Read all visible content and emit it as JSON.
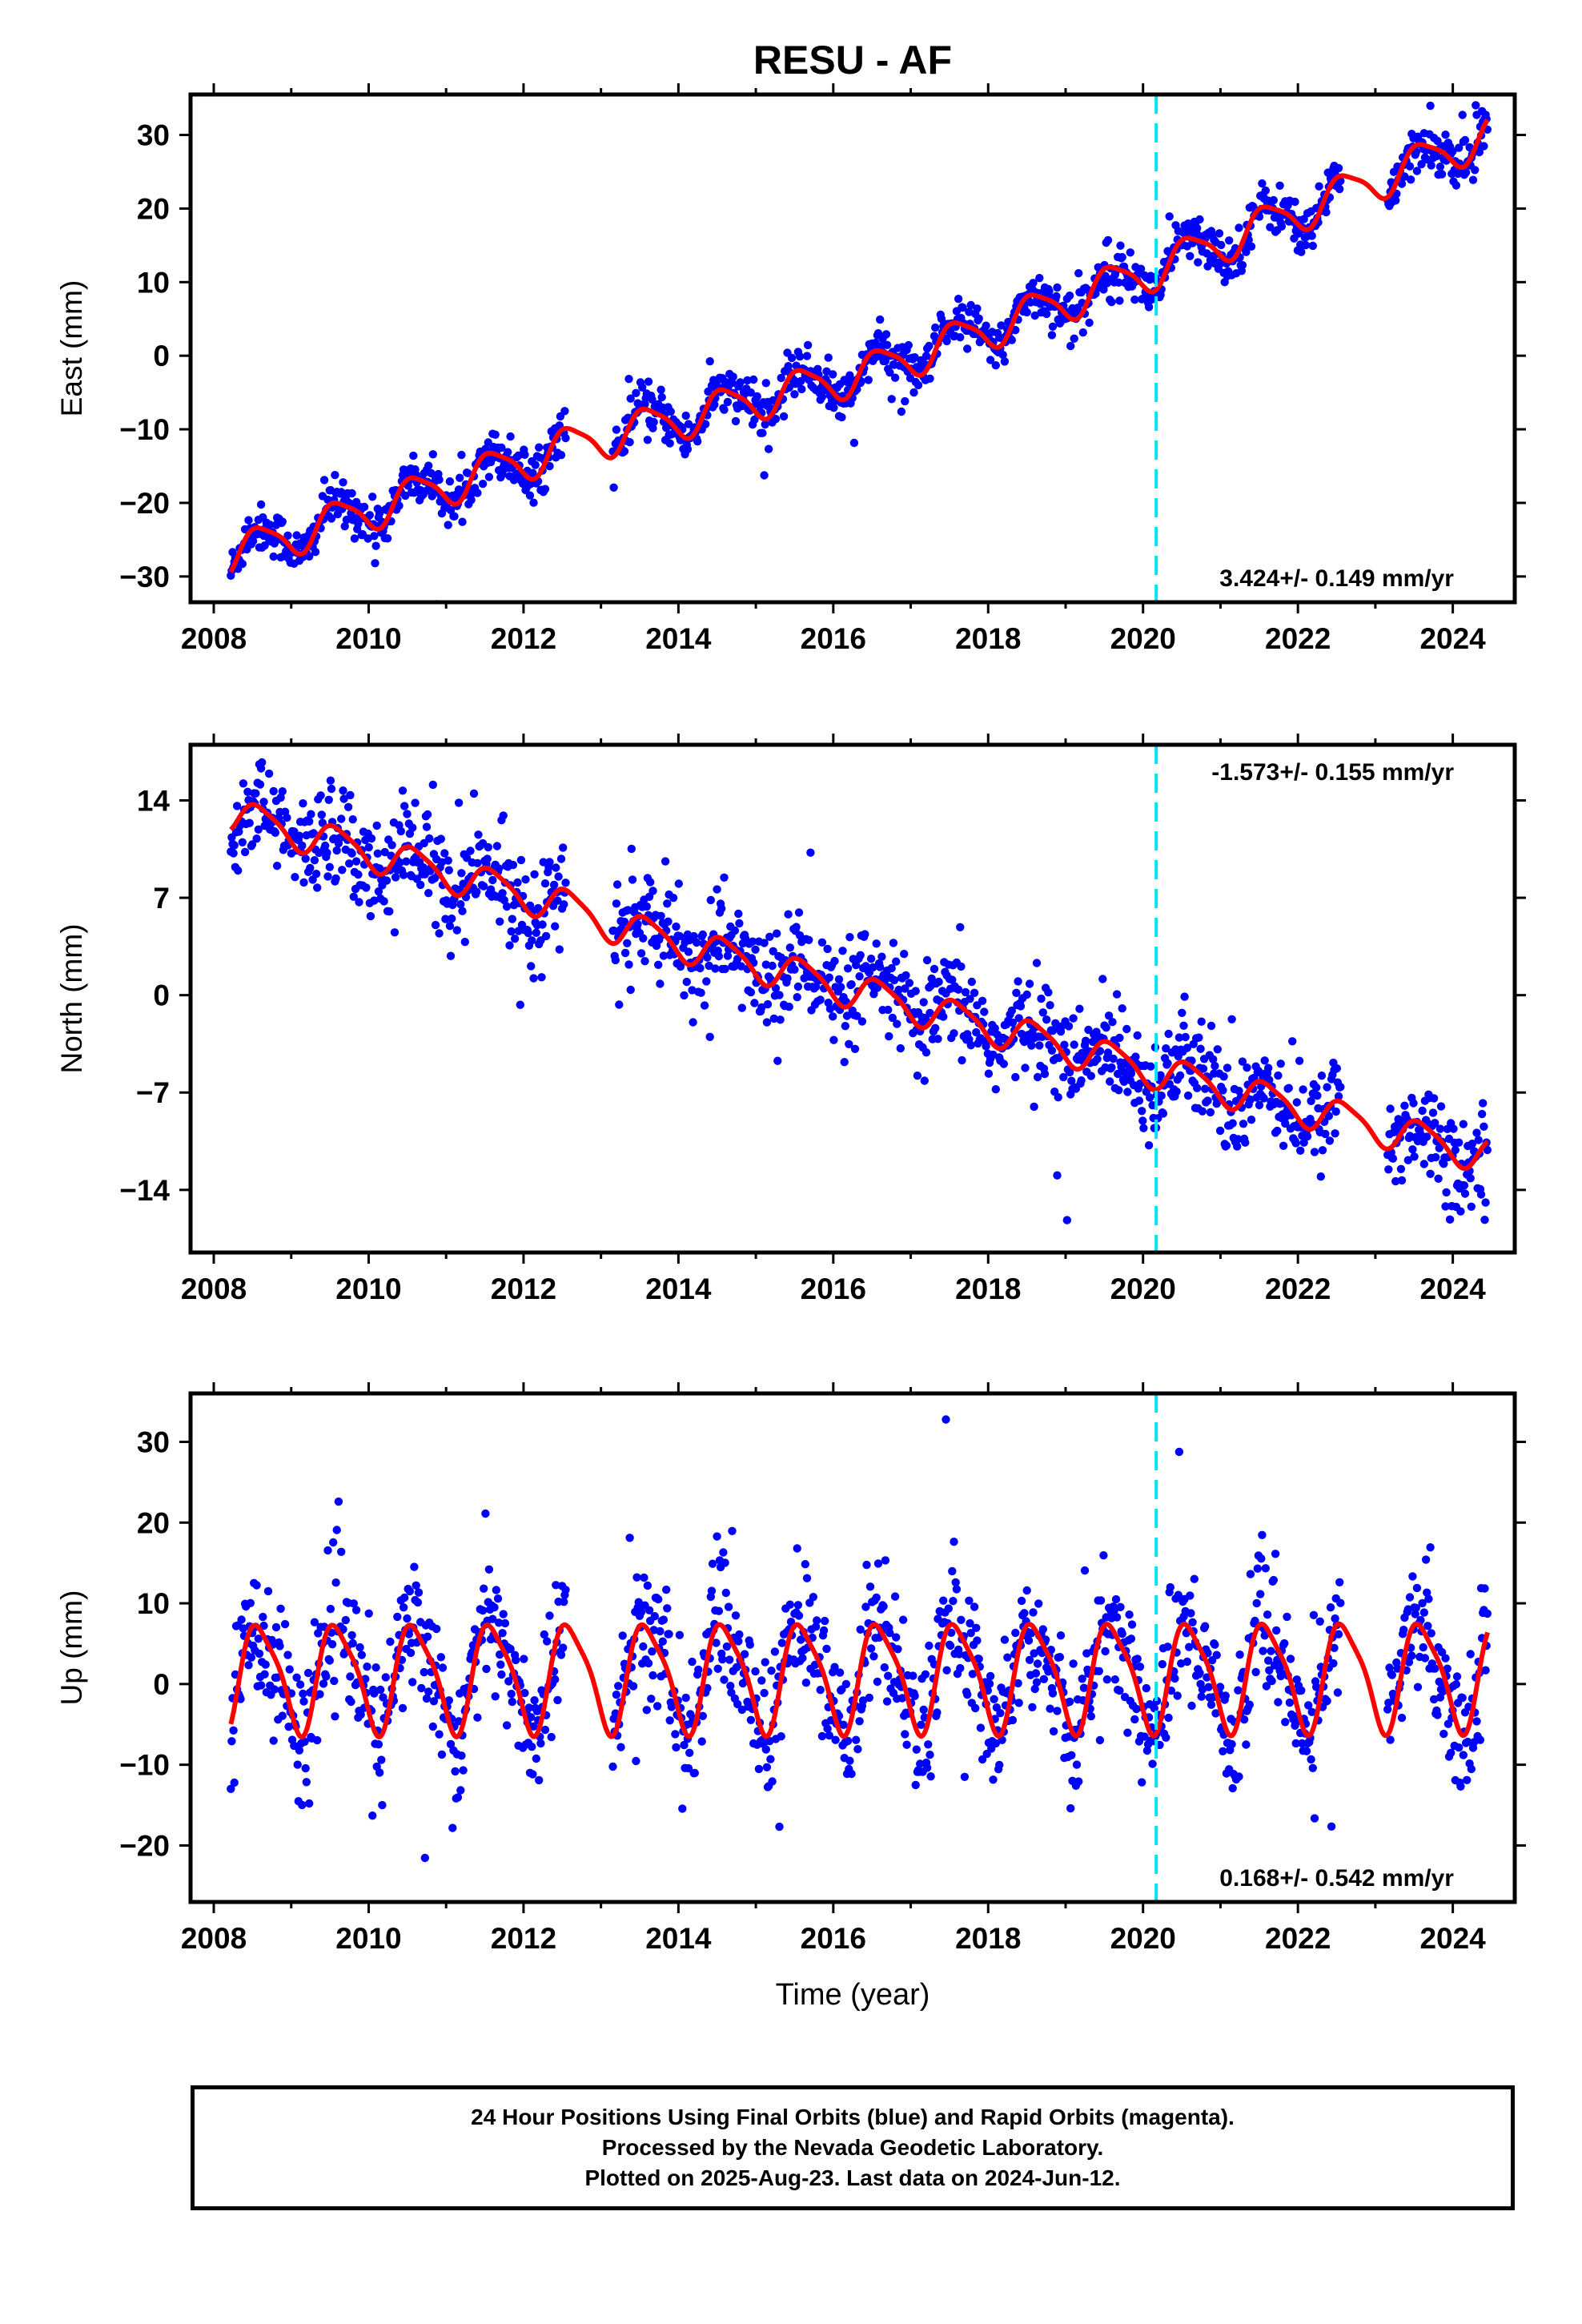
{
  "title": "RESU - AF",
  "xlabel": "Time (year)",
  "footer": {
    "line1": "24 Hour Positions Using Final Orbits (blue) and Rapid Orbits (magenta).",
    "line2": "Processed by the Nevada Geodetic Laboratory.",
    "line3": "Plotted on 2025-Aug-23. Last data on 2024-Jun-12."
  },
  "colors": {
    "data": "#0000ff",
    "model": "#ff0000",
    "event_line": "#00e5f2",
    "frame": "#000000"
  },
  "event_line_year": 2020.17,
  "chart_data": [
    {
      "type": "scatter",
      "component": "east",
      "ylabel": "East (mm)",
      "rate_label": "3.424+/- 0.149 mm/yr",
      "rate_placement": "bottom-right",
      "xlim": [
        2007.7,
        2024.8
      ],
      "ylim": [
        -33.5,
        35.5
      ],
      "x_ticks": [
        2008,
        2010,
        2012,
        2014,
        2016,
        2018,
        2020,
        2022,
        2024
      ],
      "y_ticks": [
        -30,
        -20,
        -10,
        0,
        10,
        20,
        30
      ],
      "y_tick_labels": [
        "−30",
        "−20",
        "−10",
        "0",
        "10",
        "20",
        "30"
      ],
      "data_range": [
        2008.22,
        2024.45
      ],
      "gaps": [
        [
          2012.55,
          2013.15
        ],
        [
          2022.55,
          2023.15
        ]
      ],
      "model": {
        "trend": [
          [
            2008.22,
            -27
          ],
          [
            2012.5,
            -12.5
          ],
          [
            2016.5,
            -2
          ],
          [
            2020.2,
            12
          ],
          [
            2024.45,
            30
          ]
        ],
        "seasonal_amp": 2.6,
        "scatter_sd": 1.6
      }
    },
    {
      "type": "scatter",
      "component": "north",
      "ylabel": "North (mm)",
      "rate_label": "-1.573+/- 0.155 mm/yr",
      "rate_placement": "top-right",
      "xlim": [
        2007.7,
        2024.8
      ],
      "ylim": [
        -18.5,
        18
      ],
      "x_ticks": [
        2008,
        2010,
        2012,
        2014,
        2016,
        2018,
        2020,
        2022,
        2024
      ],
      "y_ticks": [
        -14,
        -7,
        0,
        7,
        14
      ],
      "y_tick_labels": [
        "−14",
        "−7",
        "0",
        "7",
        "14"
      ],
      "data_range": [
        2008.22,
        2024.45
      ],
      "gaps": [
        [
          2012.55,
          2013.15
        ],
        [
          2022.55,
          2023.15
        ]
      ],
      "model": {
        "trend": [
          [
            2008.22,
            13
          ],
          [
            2012.5,
            6.5
          ],
          [
            2013.2,
            5
          ],
          [
            2016.5,
            0
          ],
          [
            2020.2,
            -5.5
          ],
          [
            2024.45,
            -11.5
          ]
        ],
        "seasonal_amp": 1.2,
        "scatter_sd": 1.8
      }
    },
    {
      "type": "scatter",
      "component": "up",
      "ylabel": "Up (mm)",
      "rate_label": "0.168+/- 0.542 mm/yr",
      "rate_placement": "bottom-right",
      "xlim": [
        2007.7,
        2024.8
      ],
      "ylim": [
        -27,
        36
      ],
      "x_ticks": [
        2008,
        2010,
        2012,
        2014,
        2016,
        2018,
        2020,
        2022,
        2024
      ],
      "y_ticks": [
        -20,
        -10,
        0,
        10,
        20,
        30
      ],
      "y_tick_labels": [
        "−20",
        "−10",
        "0",
        "10",
        "20",
        "30"
      ],
      "data_range": [
        2008.22,
        2024.45
      ],
      "gaps": [
        [
          2012.55,
          2013.15
        ],
        [
          2022.55,
          2023.15
        ]
      ],
      "model": {
        "trend": [
          [
            2008.22,
            1
          ],
          [
            2024.45,
            1.2
          ]
        ],
        "seasonal_amp": 6.5,
        "scatter_sd": 4.2
      }
    }
  ]
}
